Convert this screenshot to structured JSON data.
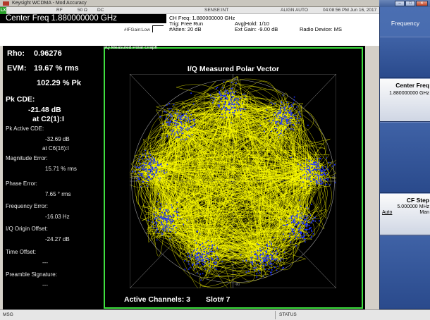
{
  "window": {
    "title": "Keysight WCDMA - Mod Accuracy",
    "controls": [
      "–",
      "□",
      "✕"
    ]
  },
  "header": {
    "badge": "LX",
    "status_row": {
      "rf": "RF",
      "impedance": "50 Ω",
      "coupling": "DC",
      "sense": "SENSE:INT",
      "align": "ALIGN AUTO",
      "datetime": "04:08:56 PM Jun 16, 2017"
    },
    "center_freq": "Center Freq 1.880000000 GHz",
    "ch_freq": "CH Freq: 1.880000000 GHz",
    "trig": "Trig: Free Run",
    "atten": "#Atten: 20 dB",
    "avg_hold": "Avg|Hold: 1/10",
    "ext_gain": "Ext Gain: -9.00 dB",
    "radio_device": "Radio Device: MS",
    "if_gain": "#IFGain:Low"
  },
  "results": {
    "rho_label": "Rho:",
    "rho_value": "0.96276",
    "evm_label": "EVM:",
    "evm_rms": "19.67 % rms",
    "evm_pk": "102.29 % Pk",
    "pk_cde_label": "Pk CDE:",
    "pk_cde_value": "-21.48 dB",
    "pk_cde_at": "at C2(1):I",
    "pk_active_cde_label": "Pk Active CDE:",
    "pk_active_cde_value": "-32.69 dB",
    "pk_active_cde_at": "at C6(16):I",
    "mag_err_label": "Magnitude Error:",
    "mag_err_value": "15.71 % rms",
    "phase_err_label": "Phase Error:",
    "phase_err_value": "7.65 ° rms",
    "freq_err_label": "Frequency Error:",
    "freq_err_value": "-16.03 Hz",
    "iq_offset_label": "I/Q Origin Offset:",
    "iq_offset_value": "-24.27 dB",
    "time_offset_label": "Time Offset:",
    "time_offset_value": "---",
    "preamble_label": "Preamble Signature:",
    "preamble_value": "---"
  },
  "graph": {
    "window_label": "I/Q Measured Polar Graph",
    "title": "I/Q Measured Polar Vector",
    "angle_labels": {
      "top": "90",
      "left": "180",
      "right": "0",
      "bottom": "-90"
    },
    "active_channels": "Active Channels: 3",
    "slot": "Slot# 7",
    "colors": {
      "border": "#3fe03f",
      "trace": "#ffff00",
      "points": "#1e32ff",
      "grid": "#9a9a9a"
    }
  },
  "softkeys": {
    "menu_title": "Frequency",
    "center_freq_label": "Center Freq",
    "center_freq_value": "1.880000000 GHz",
    "cf_step_label": "CF Step",
    "cf_step_value": "5.000000 MHz",
    "cf_step_auto": "Auto",
    "cf_step_man": "Man"
  },
  "statusbar": {
    "msg": "MSG",
    "status": "STATUS"
  }
}
